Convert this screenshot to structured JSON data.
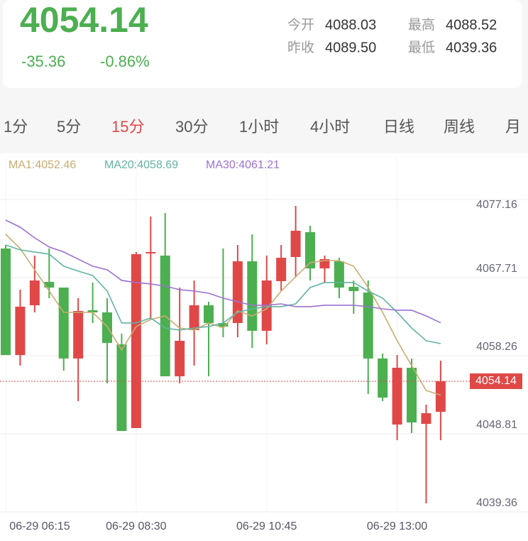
{
  "header": {
    "price": "4054.14",
    "change": "-35.36",
    "change_pct": "-0.86%",
    "stats": [
      {
        "label": "今开",
        "value": "4088.03"
      },
      {
        "label": "最高",
        "value": "4088.52"
      },
      {
        "label": "昨收",
        "value": "4089.50"
      },
      {
        "label": "最低",
        "value": "4039.36"
      }
    ]
  },
  "tabs": {
    "items": [
      "1分",
      "5分",
      "15分",
      "30分",
      "1小时",
      "4小时",
      "日线",
      "周线",
      "月"
    ],
    "active": 2
  },
  "chart_data": {
    "type": "candlestick",
    "categories": [
      "06-29 06:15",
      null,
      null,
      null,
      null,
      null,
      null,
      null,
      null,
      "06-29 08:30",
      null,
      null,
      null,
      null,
      null,
      null,
      null,
      null,
      "06-29 10:45",
      null,
      null,
      null,
      null,
      null,
      null,
      null,
      null,
      "06-29 13:00",
      null,
      null,
      null
    ],
    "open": [
      4070.2,
      4057.31,
      4063.33,
      4066.16,
      4065.47,
      4056.89,
      4062.73,
      4062.47,
      4058.6,
      4048.47,
      4069.6,
      4069.34,
      4054.74,
      4060.32,
      4063.33,
      4061.18,
      4061.18,
      4068.65,
      4060.24,
      4066.25,
      4069.17,
      4072.18,
      4067.79,
      4068.65,
      4065.56,
      4064.87,
      4056.89,
      4048.9,
      4055.77,
      4048.98,
      4050.44
    ],
    "high": [
      4070.63,
      4065.22,
      4069.34,
      4070.2,
      4065.47,
      4064.19,
      4066.08,
      4064.19,
      4059.89,
      4069.77,
      4074.07,
      4074.5,
      4065.47,
      4066.33,
      4063.76,
      4070.2,
      4070.63,
      4071.92,
      4069.34,
      4070.63,
      4075.36,
      4072.95,
      4069.34,
      4069.08,
      4066.33,
      4066.33,
      4057.49,
      4057.31,
      4056.89,
      4051.3,
      4056.63
    ],
    "low": [
      4057.31,
      4056.03,
      4062.47,
      4064.19,
      4055.42,
      4051.73,
      4061.18,
      4053.88,
      4048.12,
      4048.47,
      4061.61,
      4054.74,
      4053.88,
      4056.03,
      4054.74,
      4059.46,
      4059.46,
      4058.17,
      4058.6,
      4065.05,
      4066.76,
      4066.33,
      4066.08,
      4064.19,
      4062.3,
      4052.59,
      4051.73,
      4047.01,
      4047.87,
      4039.36,
      4047.01
    ],
    "close": [
      4057.31,
      4063.16,
      4066.33,
      4065.47,
      4056.89,
      4062.64,
      4062.47,
      4058.77,
      4048.12,
      4069.51,
      4069.77,
      4054.74,
      4059.03,
      4063.33,
      4061.18,
      4060.75,
      4068.65,
      4060.24,
      4066.33,
      4069.08,
      4072.35,
      4067.79,
      4068.91,
      4065.47,
      4065.05,
      4056.89,
      4052.16,
      4055.77,
      4049.15,
      4050.27,
      4054.14
    ],
    "up_color": "#e04848",
    "down_color": "#4caf50",
    "series": [
      {
        "name": "MA1:4052.46",
        "color": "#c9ac72",
        "values": [
          4071.92,
          4070.2,
          4067.63,
          4065.05,
          4062.47,
          4062.47,
          4062.47,
          4060.76,
          4057.92,
          4060.76,
          4061.61,
          4062.04,
          4060.58,
          4060.33,
          4061.19,
          4060.58,
          4062.65,
          4062.04,
          4062.9,
          4065.05,
          4066.77,
          4068.49,
          4068.74,
          4068.74,
          4068.06,
          4065.48,
          4062.47,
          4059.04,
          4056.03,
          4053.02,
          4052.46
        ]
      },
      {
        "name": "MA20:4058.69",
        "color": "#62b3a4",
        "values": [
          4070.63,
          4070.03,
          4069.78,
          4069.52,
          4068.06,
          4067.46,
          4066.94,
          4065.05,
          4061.19,
          4061.19,
          4061.79,
          4060.58,
          4060.33,
          4060.58,
          4060.76,
          4061.19,
          4062.47,
          4062.9,
          4063.16,
          4063.16,
          4063.5,
          4065.48,
          4066.08,
          4066.08,
          4066.08,
          4065.05,
          4064.19,
          4062.47,
          4060.58,
          4059.04,
          4058.69
        ]
      },
      {
        "name": "MA30:4061.21",
        "color": "#9c72d2",
        "values": [
          4073.64,
          4072.78,
          4071.49,
          4070.38,
          4069.78,
          4068.92,
          4068.06,
          4067.63,
          4066.34,
          4066.08,
          4065.91,
          4065.65,
          4065.22,
          4065.05,
          4064.79,
          4064.19,
          4063.76,
          4063.33,
          4063.33,
          4063.5,
          4063.16,
          4063.16,
          4063.33,
          4063.33,
          4063.33,
          4063.16,
          4062.9,
          4062.73,
          4062.73,
          4062.04,
          4061.21
        ]
      }
    ],
    "current_price": 4054.14,
    "ylim": [
      4039.36,
      4077.16
    ],
    "yticks": [
      4077.16,
      4067.71,
      4058.26,
      4048.81,
      4039.36
    ],
    "grid": true
  }
}
